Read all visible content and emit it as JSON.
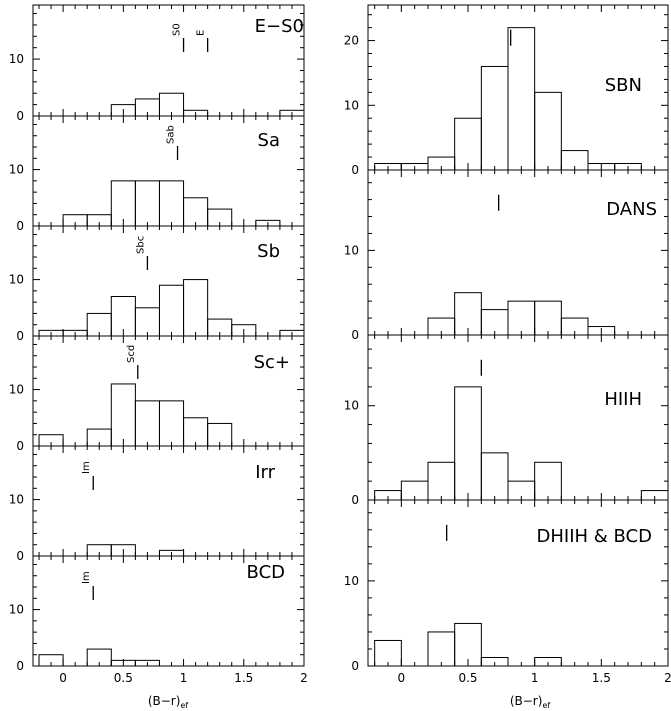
{
  "figure": {
    "xlabel": "(B−r)",
    "xlabel_sub": "ef"
  },
  "chart_data": [
    {
      "type": "bar",
      "title": "E−S0",
      "xlim": [
        -0.25,
        2.0
      ],
      "ylim": [
        0,
        19.5
      ],
      "xticks": [
        "0",
        "0.5",
        "1",
        "1.5",
        "2"
      ],
      "yticks": [
        0,
        10
      ],
      "bin_width": 0.2,
      "bins": [
        {
          "x0": 0.2,
          "count": 0
        },
        {
          "x0": 0.4,
          "count": 2
        },
        {
          "x0": 0.6,
          "count": 3
        },
        {
          "x0": 0.8,
          "count": 4
        },
        {
          "x0": 1.0,
          "count": 1
        },
        {
          "x0": 1.8,
          "count": 1
        }
      ],
      "markers": [
        {
          "label": "S0",
          "x": 1.0
        },
        {
          "label": "E",
          "x": 1.2
        }
      ]
    },
    {
      "type": "bar",
      "title": "Sa",
      "xlim": [
        -0.25,
        2.0
      ],
      "ylim": [
        0,
        19.5
      ],
      "xticks": [
        "0",
        "0.5",
        "1",
        "1.5",
        "2"
      ],
      "yticks": [
        0,
        10
      ],
      "bin_width": 0.2,
      "bins": [
        {
          "x0": -0.2,
          "count": 0
        },
        {
          "x0": 0.0,
          "count": 2
        },
        {
          "x0": 0.2,
          "count": 2
        },
        {
          "x0": 0.4,
          "count": 8
        },
        {
          "x0": 0.6,
          "count": 8
        },
        {
          "x0": 0.8,
          "count": 8
        },
        {
          "x0": 1.0,
          "count": 5
        },
        {
          "x0": 1.2,
          "count": 3
        },
        {
          "x0": 1.6,
          "count": 1
        }
      ],
      "markers": [
        {
          "label": "Sab",
          "x": 0.95
        }
      ]
    },
    {
      "type": "bar",
      "title": "Sb",
      "xlim": [
        -0.25,
        2.0
      ],
      "ylim": [
        0,
        19.5
      ],
      "xticks": [
        "0",
        "0.5",
        "1",
        "1.5",
        "2"
      ],
      "yticks": [
        0,
        10
      ],
      "bin_width": 0.2,
      "bins": [
        {
          "x0": -0.2,
          "count": 1
        },
        {
          "x0": 0.0,
          "count": 1
        },
        {
          "x0": 0.2,
          "count": 4
        },
        {
          "x0": 0.4,
          "count": 7
        },
        {
          "x0": 0.6,
          "count": 5
        },
        {
          "x0": 0.8,
          "count": 9
        },
        {
          "x0": 1.0,
          "count": 10
        },
        {
          "x0": 1.2,
          "count": 3
        },
        {
          "x0": 1.4,
          "count": 2
        },
        {
          "x0": 1.8,
          "count": 1
        }
      ],
      "markers": [
        {
          "label": "Sbc",
          "x": 0.7
        }
      ]
    },
    {
      "type": "bar",
      "title": "Sc+",
      "xlim": [
        -0.25,
        2.0
      ],
      "ylim": [
        0,
        19.5
      ],
      "xticks": [
        "0",
        "0.5",
        "1",
        "1.5",
        "2"
      ],
      "yticks": [
        0,
        10
      ],
      "bin_width": 0.2,
      "bins": [
        {
          "x0": -0.2,
          "count": 2
        },
        {
          "x0": 0.2,
          "count": 3
        },
        {
          "x0": 0.4,
          "count": 11
        },
        {
          "x0": 0.6,
          "count": 8
        },
        {
          "x0": 0.8,
          "count": 8
        },
        {
          "x0": 1.0,
          "count": 5
        },
        {
          "x0": 1.2,
          "count": 4
        }
      ],
      "markers": [
        {
          "label": "Scd",
          "x": 0.62
        }
      ]
    },
    {
      "type": "bar",
      "title": "Irr",
      "xlim": [
        -0.25,
        2.0
      ],
      "ylim": [
        0,
        19.5
      ],
      "xticks": [
        "0",
        "0.5",
        "1",
        "1.5",
        "2"
      ],
      "yticks": [
        0,
        10
      ],
      "bin_width": 0.2,
      "bins": [
        {
          "x0": 0.2,
          "count": 2
        },
        {
          "x0": 0.4,
          "count": 2
        },
        {
          "x0": 0.8,
          "count": 1
        }
      ],
      "markers": [
        {
          "label": "Im",
          "x": 0.25
        }
      ]
    },
    {
      "type": "bar",
      "title": "BCD",
      "xlim": [
        -0.25,
        2.0
      ],
      "ylim": [
        0,
        19.5
      ],
      "xticks": [
        "0",
        "0.5",
        "1",
        "1.5",
        "2"
      ],
      "yticks": [
        0,
        10
      ],
      "bin_width": 0.2,
      "bins": [
        {
          "x0": -0.2,
          "count": 2
        },
        {
          "x0": 0.2,
          "count": 3
        },
        {
          "x0": 0.4,
          "count": 1
        },
        {
          "x0": 0.6,
          "count": 1
        }
      ],
      "markers": [
        {
          "label": "Im",
          "x": 0.25
        }
      ]
    },
    {
      "type": "bar",
      "title": "SBN",
      "xlim": [
        -0.25,
        2.0
      ],
      "ylim": [
        0,
        25.5
      ],
      "xticks": [
        "0",
        "0.5",
        "1",
        "1.5",
        "2"
      ],
      "yticks": [
        0,
        10,
        20
      ],
      "bin_width": 0.2,
      "bins": [
        {
          "x0": -0.2,
          "count": 1
        },
        {
          "x0": 0.0,
          "count": 1
        },
        {
          "x0": 0.2,
          "count": 2
        },
        {
          "x0": 0.4,
          "count": 8
        },
        {
          "x0": 0.6,
          "count": 16
        },
        {
          "x0": 0.8,
          "count": 22
        },
        {
          "x0": 1.0,
          "count": 12
        },
        {
          "x0": 1.2,
          "count": 3
        },
        {
          "x0": 1.4,
          "count": 1
        },
        {
          "x0": 1.6,
          "count": 1
        }
      ],
      "markers": [
        {
          "label": "",
          "x": 0.82
        }
      ]
    },
    {
      "type": "bar",
      "title": "DANS",
      "xlim": [
        -0.25,
        2.0
      ],
      "ylim": [
        0,
        19.5
      ],
      "xticks": [
        "0",
        "0.5",
        "1",
        "1.5",
        "2"
      ],
      "yticks": [
        0,
        10
      ],
      "bin_width": 0.2,
      "bins": [
        {
          "x0": 0.2,
          "count": 2
        },
        {
          "x0": 0.4,
          "count": 5
        },
        {
          "x0": 0.6,
          "count": 3
        },
        {
          "x0": 0.8,
          "count": 4
        },
        {
          "x0": 1.0,
          "count": 4
        },
        {
          "x0": 1.2,
          "count": 2
        },
        {
          "x0": 1.4,
          "count": 1
        }
      ],
      "markers": [
        {
          "label": "",
          "x": 0.73
        }
      ]
    },
    {
      "type": "bar",
      "title": "HIIH",
      "xlim": [
        -0.25,
        2.0
      ],
      "ylim": [
        0,
        17.5
      ],
      "xticks": [
        "0",
        "0.5",
        "1",
        "1.5",
        "2"
      ],
      "yticks": [
        0,
        10
      ],
      "bin_width": 0.2,
      "bins": [
        {
          "x0": -0.2,
          "count": 1
        },
        {
          "x0": 0.0,
          "count": 2
        },
        {
          "x0": 0.2,
          "count": 4
        },
        {
          "x0": 0.4,
          "count": 12
        },
        {
          "x0": 0.6,
          "count": 5
        },
        {
          "x0": 0.8,
          "count": 2
        },
        {
          "x0": 1.0,
          "count": 4
        },
        {
          "x0": 1.8,
          "count": 1
        }
      ],
      "markers": [
        {
          "label": "",
          "x": 0.6
        }
      ]
    },
    {
      "type": "bar",
      "title": "DHIIH & BCD",
      "xlim": [
        -0.25,
        2.0
      ],
      "ylim": [
        0,
        19.5
      ],
      "xticks": [
        "0",
        "0.5",
        "1",
        "1.5",
        "2"
      ],
      "yticks": [
        0,
        10
      ],
      "bin_width": 0.2,
      "bins": [
        {
          "x0": -0.2,
          "count": 3
        },
        {
          "x0": 0.2,
          "count": 4
        },
        {
          "x0": 0.4,
          "count": 5
        },
        {
          "x0": 0.6,
          "count": 1
        },
        {
          "x0": 1.0,
          "count": 1
        }
      ],
      "markers": [
        {
          "label": "",
          "x": 0.34
        }
      ]
    }
  ]
}
